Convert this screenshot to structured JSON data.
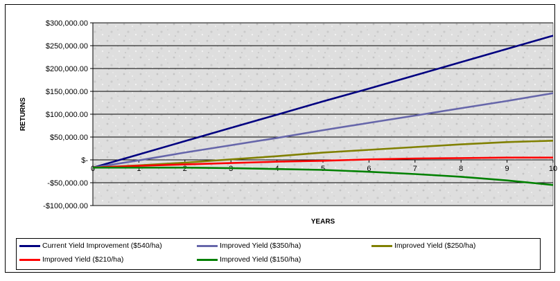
{
  "chart_data": {
    "type": "line",
    "title": "",
    "xlabel": "YEARS",
    "ylabel": "RETURNS",
    "x": [
      0,
      1,
      2,
      3,
      4,
      5,
      6,
      7,
      8,
      9,
      10
    ],
    "xlim": [
      0,
      10
    ],
    "ylim": [
      -100000,
      300000
    ],
    "y_ticks": [
      300000,
      250000,
      200000,
      150000,
      100000,
      50000,
      0,
      -50000,
      -100000
    ],
    "y_tick_labels": [
      "$300,000.00",
      "$250,000.00",
      "$200,000.00",
      "$150,000.00",
      "$100,000.00",
      "$50,000.00",
      "$-",
      "-$50,000.00",
      "-$100,000.00"
    ],
    "x_tick_labels": [
      "0",
      "1",
      "2",
      "3",
      "4",
      "5",
      "6",
      "7",
      "8",
      "9",
      "10"
    ],
    "grid": "horizontal",
    "legend_position": "bottom",
    "series": [
      {
        "name": "Current Yield Improvement ($540/ha)",
        "color": "#000080",
        "values": [
          -17000,
          12000,
          41000,
          70000,
          99000,
          128000,
          156000,
          185000,
          214000,
          243000,
          272000
        ]
      },
      {
        "name": "Improved Yield ($350/ha)",
        "color": "#6666aa",
        "values": [
          -17000,
          -1000,
          16000,
          32000,
          48000,
          65000,
          81000,
          97000,
          113000,
          129000,
          146000
        ]
      },
      {
        "name": "Improved Yield ($250/ha)",
        "color": "#808000",
        "values": [
          -17000,
          -12000,
          -6000,
          1000,
          8000,
          16000,
          22000,
          28000,
          34000,
          39000,
          42000
        ]
      },
      {
        "name": "Improved Yield ($210/ha)",
        "color": "#ff0000",
        "values": [
          -17000,
          -13000,
          -10000,
          -7000,
          -4000,
          -2000,
          1000,
          3000,
          4000,
          5000,
          5000
        ]
      },
      {
        "name": "Improved Yield ($150/ha)",
        "color": "#008000",
        "values": [
          -17000,
          -17000,
          -17000,
          -18000,
          -20000,
          -22000,
          -26000,
          -31000,
          -37000,
          -45000,
          -55000
        ]
      }
    ]
  }
}
